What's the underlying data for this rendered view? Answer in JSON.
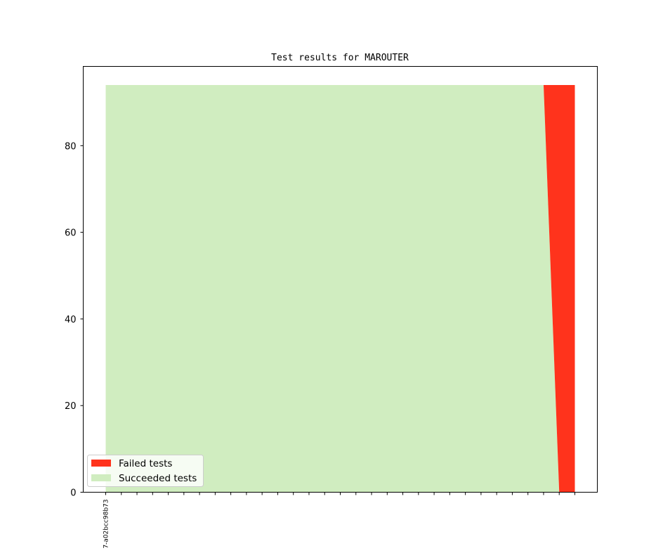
{
  "chart_data": {
    "type": "area",
    "title": "Test results for MAROUTER",
    "xlabel": "",
    "ylabel": "",
    "ylim": [
      0,
      98.3
    ],
    "yticks": [
      0,
      20,
      40,
      60,
      80
    ],
    "x_tick_count": 31,
    "x_tick_labels": [
      {
        "index": 0,
        "label": "7-a02bcc98b73"
      }
    ],
    "stacked": true,
    "series": [
      {
        "name": "Succeeded tests",
        "color": "#d0edc0",
        "values": [
          94,
          94,
          94,
          94,
          94,
          94,
          94,
          94,
          94,
          94,
          94,
          94,
          94,
          94,
          94,
          94,
          94,
          94,
          94,
          94,
          94,
          94,
          94,
          94,
          94,
          94,
          94,
          94,
          94,
          0,
          0
        ]
      },
      {
        "name": "Failed tests",
        "color": "#ff331c",
        "values": [
          0,
          0,
          0,
          0,
          0,
          0,
          0,
          0,
          0,
          0,
          0,
          0,
          0,
          0,
          0,
          0,
          0,
          0,
          0,
          0,
          0,
          0,
          0,
          0,
          0,
          0,
          0,
          0,
          0,
          94,
          94
        ]
      }
    ],
    "legend": {
      "placement": "lower-left",
      "entries": [
        "Failed tests",
        "Succeeded tests"
      ]
    },
    "grid": false
  }
}
